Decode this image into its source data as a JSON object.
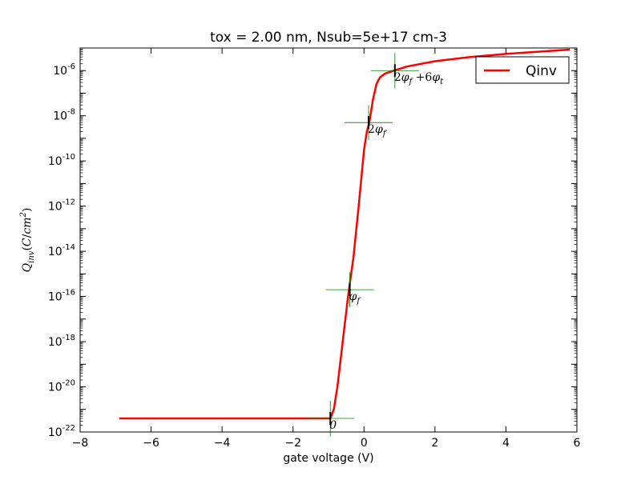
{
  "chart_data": {
    "type": "line",
    "title": "tox =  2.00 nm, Nsub=5e+17 cm-3",
    "xlabel": "gate voltage (V)",
    "ylabel": "Q_inv(C/cm^2)",
    "xlim": [
      -8,
      6
    ],
    "ylim": [
      1e-22,
      1e-05
    ],
    "yscale": "log",
    "grid": false,
    "legend_position": "top-right",
    "x_ticks": [
      -8,
      -6,
      -4,
      -2,
      0,
      2,
      4,
      6
    ],
    "x_tick_labels": [
      "−8",
      "−6",
      "−4",
      "−2",
      "0",
      "2",
      "4",
      "6"
    ],
    "y_ticks": [
      1e-22,
      1e-20,
      1e-18,
      1e-16,
      1e-14,
      1e-12,
      1e-10,
      1e-08,
      1e-06
    ],
    "y_tick_labels": [
      {
        "base": "10",
        "exp": "-22"
      },
      {
        "base": "10",
        "exp": "-20"
      },
      {
        "base": "10",
        "exp": "-18"
      },
      {
        "base": "10",
        "exp": "-16"
      },
      {
        "base": "10",
        "exp": "-14"
      },
      {
        "base": "10",
        "exp": "-12"
      },
      {
        "base": "10",
        "exp": "-10"
      },
      {
        "base": "10",
        "exp": "-8"
      },
      {
        "base": "10",
        "exp": "-6"
      }
    ],
    "series": [
      {
        "name": "Qinv",
        "color": "#ff0000",
        "points": [
          [
            -6.9,
            4e-22
          ],
          [
            -2.0,
            4e-22
          ],
          [
            -0.95,
            4e-22
          ],
          [
            -0.85,
            1e-21
          ],
          [
            -0.75,
            1e-20
          ],
          [
            -0.6,
            1e-18
          ],
          [
            -0.45,
            1e-16
          ],
          [
            -0.3,
            5e-15
          ],
          [
            -0.15,
            1e-12
          ],
          [
            0.0,
            3e-10
          ],
          [
            0.08,
            2e-09
          ],
          [
            0.15,
            5e-09
          ],
          [
            0.25,
            5e-08
          ],
          [
            0.35,
            2.5e-07
          ],
          [
            0.45,
            5e-07
          ],
          [
            0.6,
            7.5e-07
          ],
          [
            0.85,
            1e-06
          ],
          [
            1.2,
            1.5e-06
          ],
          [
            2.0,
            2.6e-06
          ],
          [
            3.0,
            4e-06
          ],
          [
            4.0,
            5.5e-06
          ],
          [
            5.0,
            7e-06
          ],
          [
            5.8,
            8.5e-06
          ]
        ]
      }
    ],
    "markers": [
      {
        "x": -0.95,
        "y": 4e-22,
        "label": "0"
      },
      {
        "x": -0.4,
        "y": 2e-16,
        "label": "φ_f"
      },
      {
        "x": 0.13,
        "y": 5e-09,
        "label": "2φ_f"
      },
      {
        "x": 0.87,
        "y": 1e-06,
        "label": "2φ_f + 6φ_t"
      }
    ],
    "marker_color": "#008000"
  }
}
